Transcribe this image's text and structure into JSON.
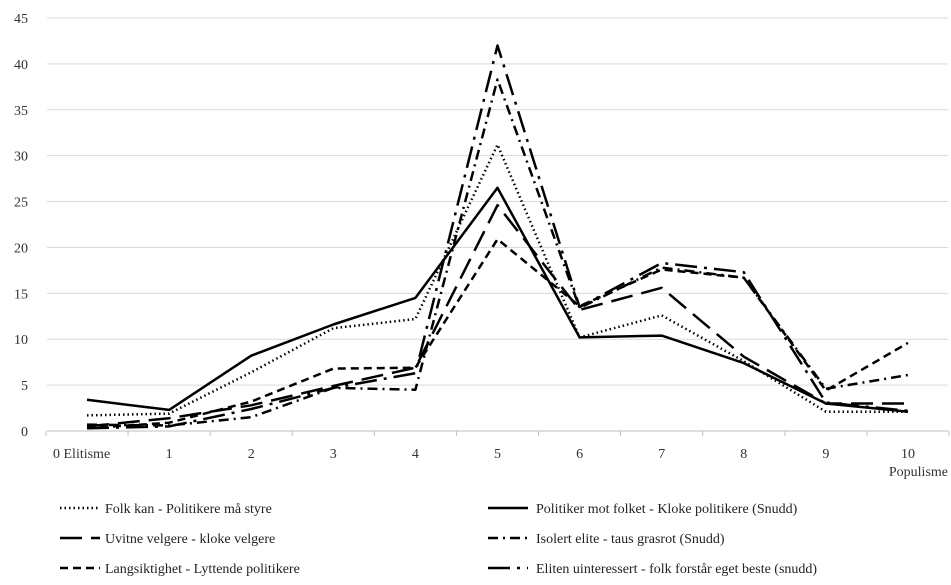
{
  "chart_data": {
    "type": "line",
    "title": "",
    "xlabel": "",
    "ylabel": "",
    "x": [
      0,
      1,
      2,
      3,
      4,
      5,
      6,
      7,
      8,
      9,
      10
    ],
    "x_tick_labels": [
      "0 Elitisme",
      "1",
      "2",
      "3",
      "4",
      "5",
      "6",
      "7",
      "8",
      "9",
      "10"
    ],
    "x_end_label": "Populisme",
    "ylim": [
      0,
      45
    ],
    "y_ticks": [
      0,
      5,
      10,
      15,
      20,
      25,
      30,
      35,
      40,
      45
    ],
    "grid": true,
    "legend_position": "bottom",
    "series": [
      {
        "name": "Folk kan - Politikere må styre",
        "dash": "dot",
        "color": "#000000",
        "values": [
          1.7,
          1.9,
          6.4,
          11.2,
          12.2,
          31.2,
          10.2,
          12.6,
          7.6,
          2.1,
          2.1
        ]
      },
      {
        "name": "Politiker mot folket - Kloke politikere (Snudd)",
        "dash": "solid",
        "color": "#000000",
        "values": [
          3.4,
          2.3,
          8.2,
          11.6,
          14.5,
          26.5,
          10.2,
          10.4,
          7.4,
          3.0,
          2.1
        ]
      },
      {
        "name": "Uvitne velgere - kloke velgere",
        "dash": "longdash",
        "color": "#000000",
        "values": [
          0.5,
          1.4,
          2.8,
          4.9,
          6.9,
          24.6,
          13.2,
          15.6,
          8.1,
          3.0,
          3.0
        ]
      },
      {
        "name": "Isolert elite - taus grasrot (Snudd)",
        "dash": "dashdot",
        "color": "#000000",
        "values": [
          0.7,
          0.6,
          1.5,
          4.7,
          4.5,
          38.3,
          13.4,
          17.8,
          16.7,
          4.6,
          6.1
        ]
      },
      {
        "name": "Langsiktighet - Lyttende politikere",
        "dash": "dash",
        "color": "#000000",
        "values": [
          0.3,
          0.9,
          3.2,
          6.8,
          6.9,
          20.9,
          13.6,
          17.6,
          16.7,
          4.4,
          9.6
        ]
      },
      {
        "name": "Eliten uinteressert - folk forstår eget beste (snudd)",
        "dash": "longdashdot",
        "color": "#000000",
        "values": [
          0.3,
          0.5,
          2.4,
          4.7,
          6.3,
          42.0,
          13.5,
          18.3,
          17.3,
          3.1,
          2.2
        ]
      }
    ]
  }
}
